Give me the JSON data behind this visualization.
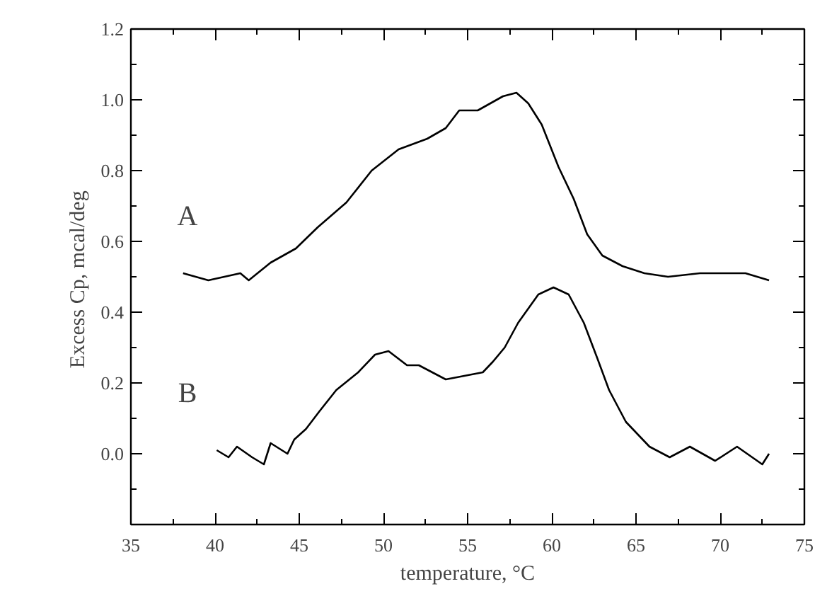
{
  "chart_data": {
    "type": "line",
    "xlabel": "temperature, °C",
    "ylabel": "Excess Cp,  mcal/deg",
    "xlim": [
      35,
      75
    ],
    "ylim": [
      -0.2,
      1.2
    ],
    "xticks": [
      35,
      {
        "value": 37.5,
        "label": null
      },
      40,
      {
        "value": 42.5,
        "label": null
      },
      45,
      {
        "value": 47.5,
        "label": null
      },
      50,
      {
        "value": 52.5,
        "label": null
      },
      55,
      {
        "value": 57.5,
        "label": null
      },
      60,
      {
        "value": 62.5,
        "label": null
      },
      65,
      {
        "value": 67.5,
        "label": null
      },
      70,
      {
        "value": 72.5,
        "label": null
      },
      75
    ],
    "yticks": [
      {
        "value": -0.1,
        "label": null
      },
      {
        "value": 0,
        "label": "0.0"
      },
      {
        "value": 0.1,
        "label": null
      },
      0.2,
      {
        "value": 0.3,
        "label": null
      },
      0.4,
      {
        "value": 0.5,
        "label": null
      },
      0.6,
      {
        "value": 0.7,
        "label": null
      },
      0.8,
      {
        "value": 0.9,
        "label": null
      },
      {
        "value": 1.0,
        "label": "1.0"
      },
      {
        "value": 1.1,
        "label": null
      },
      1.2
    ],
    "grid": false,
    "line_style": "solid",
    "annotations": [
      "A",
      "B"
    ],
    "series": [
      {
        "color": "#000000",
        "x": [
          38.1,
          39.6,
          41.5,
          42.0,
          43.3,
          44.8,
          46.1,
          47.8,
          49.3,
          50.9,
          52.6,
          53.7,
          54.5,
          55.6,
          57.1,
          57.9,
          58.6,
          59.4,
          60.4,
          61.3,
          62.1,
          63.0,
          64.2,
          65.5,
          66.9,
          68.8,
          70.5,
          71.5,
          72.9
        ],
        "values": [
          0.51,
          0.49,
          0.51,
          0.49,
          0.54,
          0.58,
          0.64,
          0.71,
          0.8,
          0.86,
          0.89,
          0.92,
          0.97,
          0.97,
          1.01,
          1.02,
          0.99,
          0.93,
          0.81,
          0.72,
          0.62,
          0.56,
          0.53,
          0.51,
          0.5,
          0.51,
          0.51,
          0.51,
          0.49
        ]
      },
      {
        "color": "#000000",
        "x": [
          40.1,
          40.8,
          41.3,
          42.2,
          42.9,
          43.3,
          44.3,
          44.7,
          45.4,
          46.2,
          47.2,
          48.5,
          49.5,
          50.3,
          51.4,
          52.1,
          53.7,
          54.8,
          55.9,
          56.5,
          57.2,
          58.0,
          59.2,
          60.1,
          61.0,
          61.9,
          62.7,
          63.4,
          64.4,
          65.8,
          67.0,
          68.2,
          69.7,
          71.0,
          72.5,
          72.9
        ],
        "values": [
          0.01,
          -0.01,
          0.02,
          -0.01,
          -0.03,
          0.03,
          0.0,
          0.04,
          0.07,
          0.12,
          0.18,
          0.23,
          0.28,
          0.29,
          0.25,
          0.25,
          0.21,
          0.22,
          0.23,
          0.26,
          0.3,
          0.37,
          0.45,
          0.47,
          0.45,
          0.37,
          0.27,
          0.18,
          0.09,
          0.02,
          -0.01,
          0.02,
          -0.02,
          0.02,
          -0.03,
          0.0
        ]
      }
    ]
  }
}
